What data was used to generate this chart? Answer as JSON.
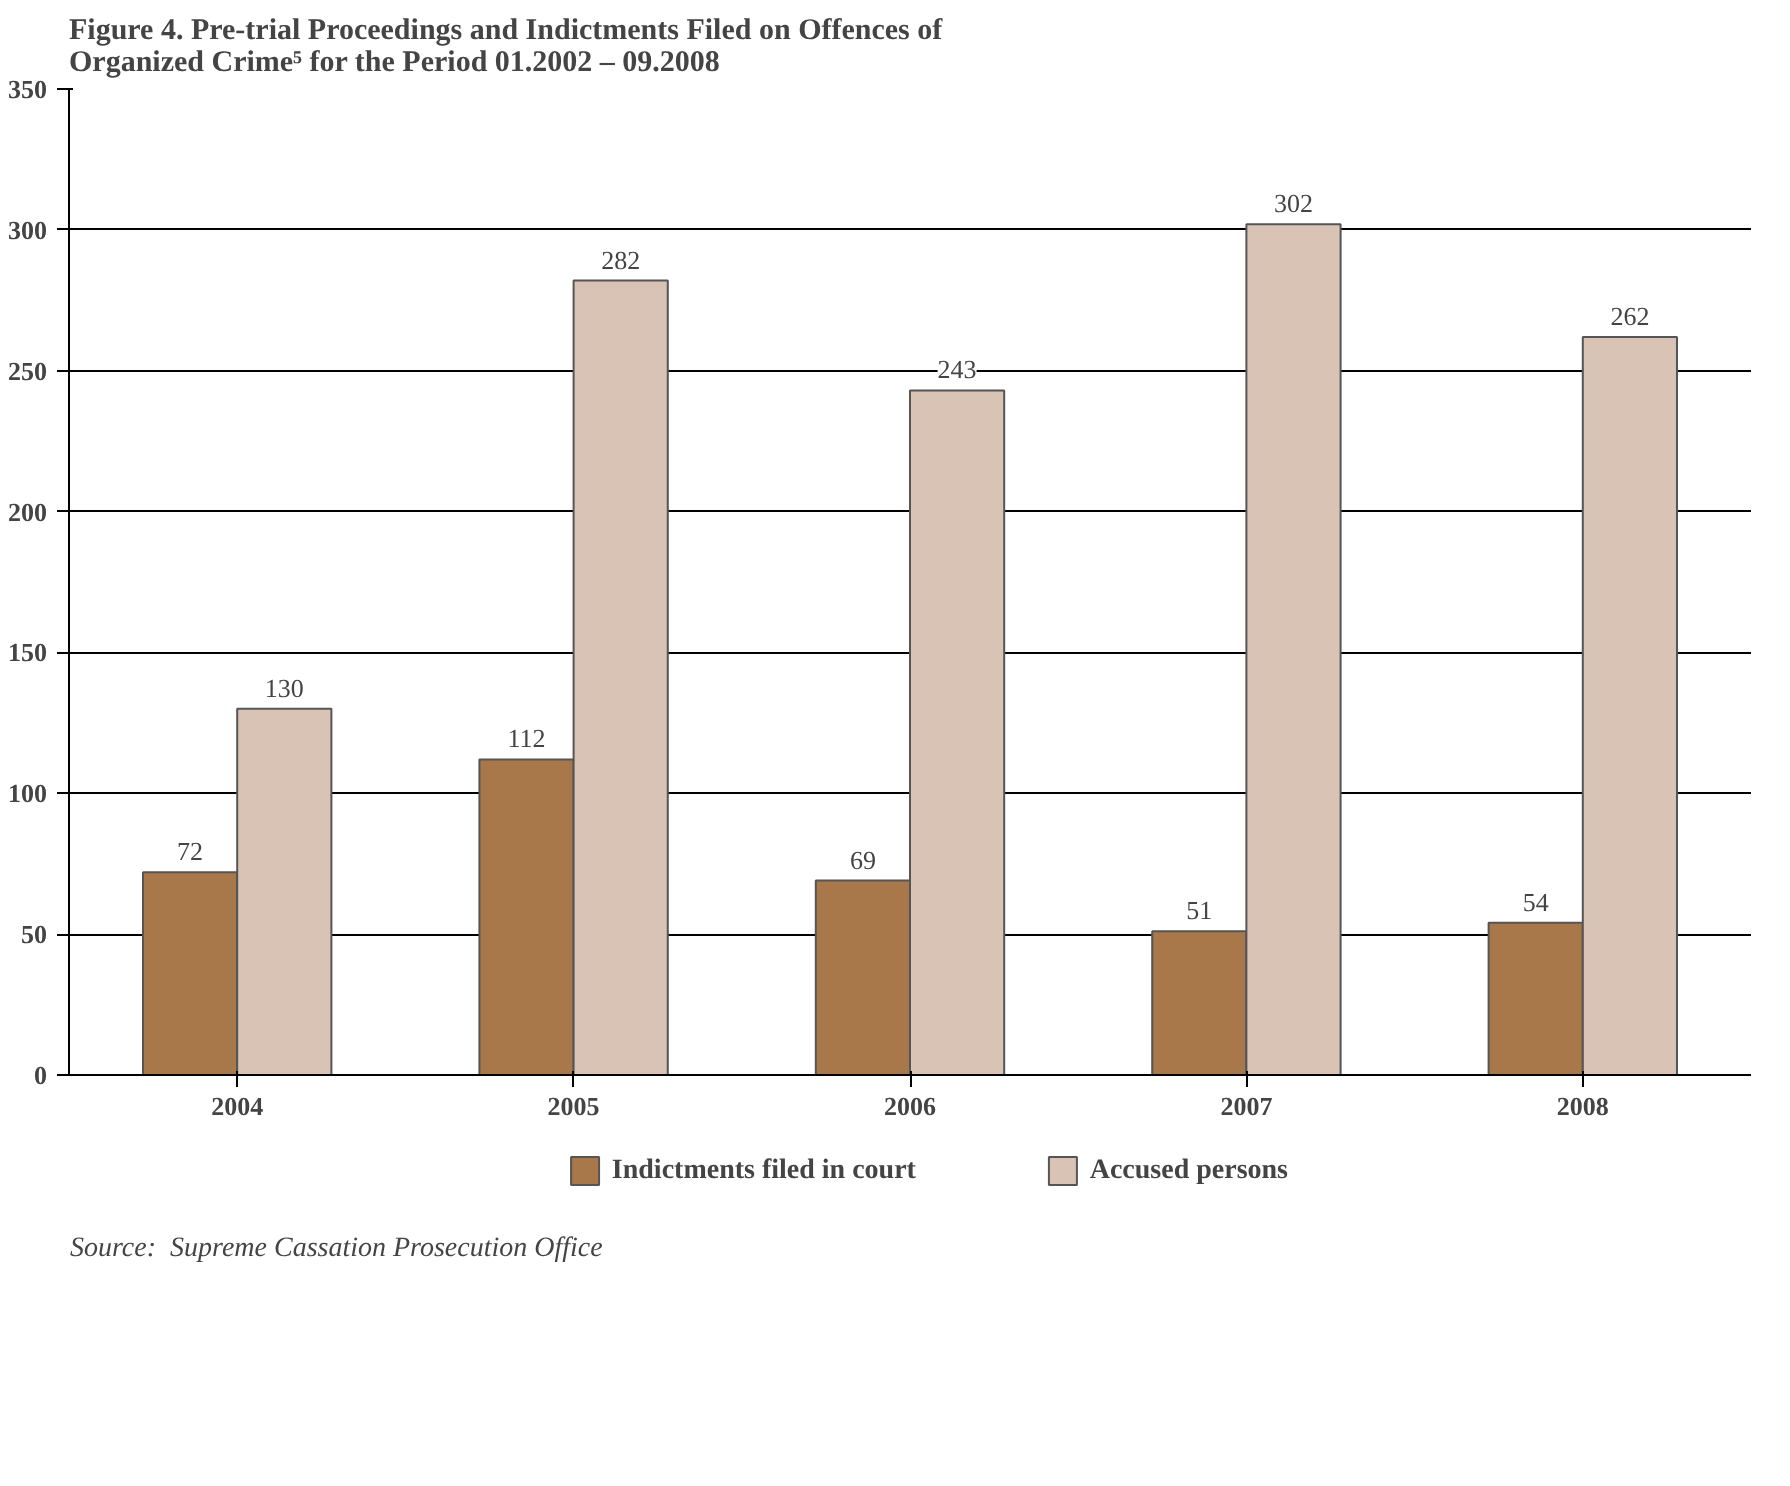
{
  "chart_data": {
    "type": "bar",
    "title": "Figure 4. Pre-trial Proceedings and Indictments Filed on Offences of Organized Crime⁵ for the Period 01.2002 – 09.2008",
    "categories": [
      "2004",
      "2005",
      "2006",
      "2007",
      "2008"
    ],
    "series": [
      {
        "name": "Indictments filed in court",
        "color": "#a8784a",
        "values": [
          72,
          112,
          69,
          51,
          54
        ]
      },
      {
        "name": "Accused persons",
        "color": "#d9c3b5",
        "values": [
          130,
          282,
          243,
          302,
          262
        ]
      }
    ],
    "ylim": [
      0,
      350
    ],
    "yticks": [
      0,
      50,
      100,
      150,
      200,
      250,
      300,
      350
    ],
    "grid": "y",
    "legend": "bottom",
    "data_labels": true,
    "annotations": [
      "Source:   Supreme Cassation Prosecution Office"
    ]
  }
}
